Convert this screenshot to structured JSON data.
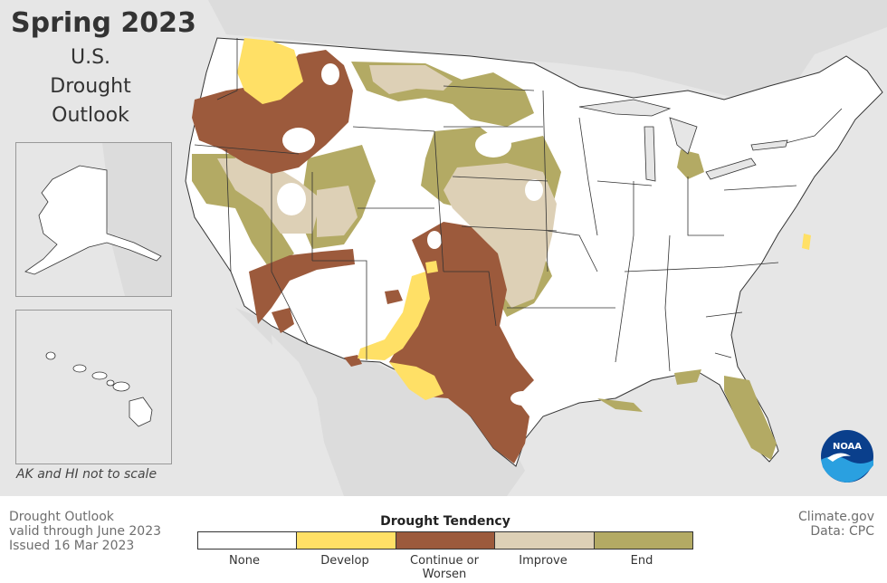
{
  "title": "Spring 2023",
  "subtitle_lines": [
    "U.S.",
    "Drought",
    "Outlook"
  ],
  "scale_note": "AK and HI not to scale",
  "footer_left": [
    "Drought Outlook",
    "valid through June 2023",
    "Issued 16 Mar 2023"
  ],
  "footer_right": [
    "Climate.gov",
    "Data: CPC"
  ],
  "legend": {
    "title": "Drought Tendency",
    "items": [
      {
        "label": "None",
        "color": "#ffffff"
      },
      {
        "label": "Develop",
        "color": "#ffe066"
      },
      {
        "label": "Continue or Worsen",
        "color": "#9c5a3c"
      },
      {
        "label": "Improve",
        "color": "#ddd0b6"
      },
      {
        "label": "End",
        "color": "#b3aa64"
      }
    ]
  },
  "colors": {
    "water": "#e6e6e6",
    "land": "#ffffff",
    "border": "#333333"
  },
  "logo": "noaa-logo"
}
